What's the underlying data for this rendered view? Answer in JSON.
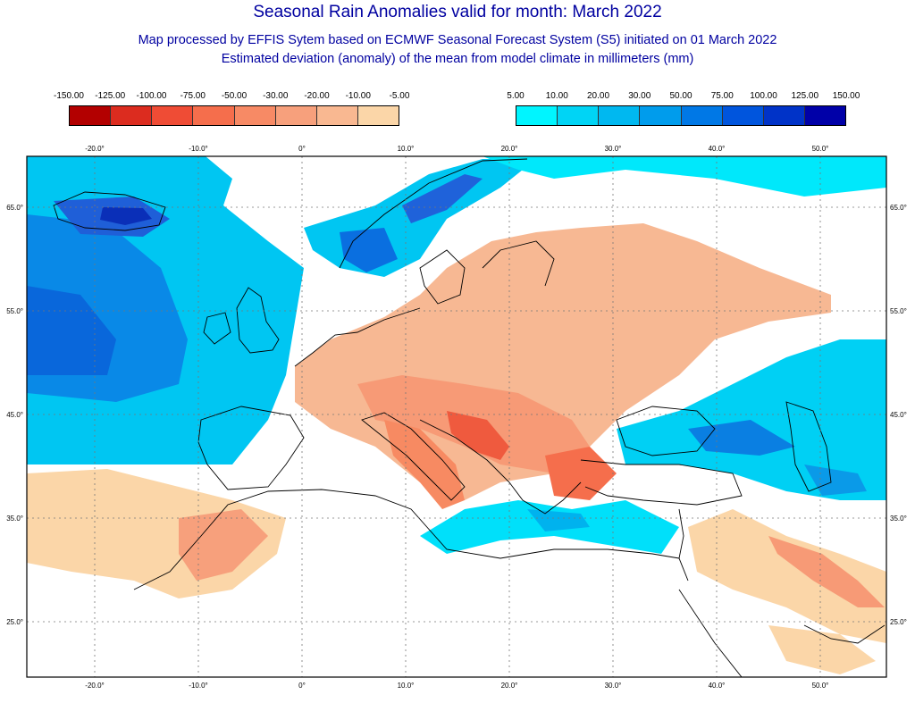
{
  "title": "Seasonal Rain Anomalies valid for month: March 2022",
  "subtitle_1": "Map processed by EFFIS Sytem based on ECMWF Seasonal Forecast System (S5) initiated on 01 March 2022",
  "subtitle_2": "Estimated deviation (anomaly) of the mean from model climate in millimeters (mm)",
  "legend_negative": {
    "labels": [
      "-150.00",
      "-125.00",
      "-100.00",
      "-75.00",
      "-50.00",
      "-30.00",
      "-20.00",
      "-10.00",
      "-5.00"
    ],
    "colors": [
      "#b30000",
      "#dc2c1f",
      "#ef4c35",
      "#f56e4c",
      "#f78a65",
      "#f7a07c",
      "#f9b891",
      "#fbd6a8"
    ]
  },
  "legend_positive": {
    "labels": [
      "5.00",
      "10.00",
      "20.00",
      "30.00",
      "50.00",
      "75.00",
      "100.00",
      "125.00",
      "150.00"
    ],
    "colors": [
      "#00f5ff",
      "#00d4f5",
      "#00b8f0",
      "#009cec",
      "#0078e6",
      "#0055dd",
      "#0033c8",
      "#0000a8"
    ]
  },
  "lon_labels": [
    "-20.0°",
    "-10.0°",
    "0°",
    "10.0°",
    "20.0°",
    "30.0°",
    "40.0°",
    "50.0°"
  ],
  "lat_labels": [
    "65.0°",
    "55.0°",
    "45.0°",
    "35.0°",
    "25.0°"
  ]
}
